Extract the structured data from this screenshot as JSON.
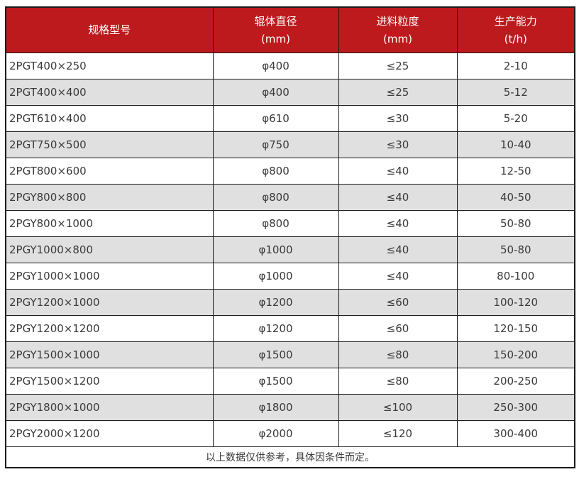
{
  "colors": {
    "header_bg": "#bc1a1d",
    "header_text": "#ffffff",
    "row_bg": "#ffffff",
    "row_alt_bg": "#e0e0e0",
    "border": "#1b1b1b",
    "text": "#3a3a3a"
  },
  "table": {
    "columns": [
      {
        "title": "规格型号",
        "unit": ""
      },
      {
        "title": "辊体直径",
        "unit": "(mm)"
      },
      {
        "title": "进料粒度",
        "unit": "(mm)"
      },
      {
        "title": "生产能力",
        "unit": "(t/h)"
      }
    ],
    "rows": [
      [
        "2PGT400×250",
        "φ400",
        "≤25",
        "2-10"
      ],
      [
        "2PGT400×400",
        "φ400",
        "≤25",
        "5-12"
      ],
      [
        "2PGT610×400",
        "φ610",
        "≤30",
        "5-20"
      ],
      [
        "2PGT750×500",
        "φ750",
        "≤30",
        "10-40"
      ],
      [
        "2PGT800×600",
        "φ800",
        "≤40",
        "12-50"
      ],
      [
        "2PGY800×800",
        "φ800",
        "≤40",
        "40-50"
      ],
      [
        "2PGY800×1000",
        "φ800",
        "≤40",
        "50-80"
      ],
      [
        "2PGY1000×800",
        "φ1000",
        "≤40",
        "50-80"
      ],
      [
        "2PGY1000×1000",
        "φ1000",
        "≤40",
        "80-100"
      ],
      [
        "2PGY1200×1000",
        "φ1200",
        "≤60",
        "100-120"
      ],
      [
        "2PGY1200×1200",
        "φ1200",
        "≤60",
        "120-150"
      ],
      [
        "2PGY1500×1000",
        "φ1500",
        "≤80",
        "150-200"
      ],
      [
        "2PGY1500×1200",
        "φ1500",
        "≤80",
        "200-250"
      ],
      [
        "2PGY1800×1000",
        "φ1800",
        "≤100",
        "250-300"
      ],
      [
        "2PGY2000×1200",
        "φ2000",
        "≤120",
        "300-400"
      ]
    ],
    "footnote": "以上数据仅供参考，具体因条件而定。"
  }
}
